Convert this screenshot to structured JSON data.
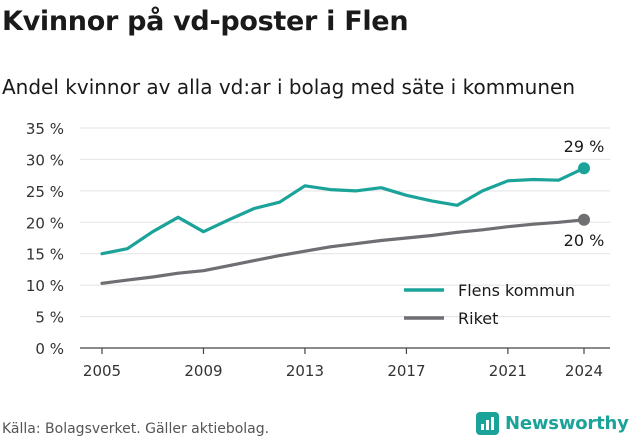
{
  "title": "Kvinnor på vd-poster i Flen",
  "subtitle": "Andel kvinnor av alla vd:ar i bolag med säte i kommunen",
  "source": "Källa: Bolagsverket. Gäller aktiebolag.",
  "brand": "Newsworthy",
  "colors": {
    "accent": "#1ba39a",
    "secondary": "#6e6e73"
  },
  "chart_data": {
    "type": "line",
    "x": [
      2005,
      2006,
      2007,
      2008,
      2009,
      2010,
      2011,
      2012,
      2013,
      2014,
      2015,
      2016,
      2017,
      2018,
      2019,
      2020,
      2021,
      2022,
      2023,
      2024
    ],
    "series": [
      {
        "name": "Flens kommun",
        "color": "#1ba39a",
        "values": [
          15.0,
          15.8,
          18.5,
          20.8,
          18.5,
          20.4,
          22.2,
          23.2,
          25.8,
          25.2,
          25.0,
          25.5,
          24.3,
          23.4,
          22.7,
          25.0,
          26.6,
          26.8,
          26.7,
          28.6
        ],
        "end_label": "29 %"
      },
      {
        "name": "Riket",
        "color": "#6e6e73",
        "values": [
          10.3,
          10.8,
          11.3,
          11.9,
          12.3,
          13.1,
          13.9,
          14.7,
          15.4,
          16.1,
          16.6,
          17.1,
          17.5,
          17.9,
          18.4,
          18.8,
          19.3,
          19.7,
          20.0,
          20.4
        ],
        "end_label": "20 %"
      }
    ],
    "y_ticks": [
      "0 %",
      "5 %",
      "10 %",
      "15 %",
      "20 %",
      "25 %",
      "30 %",
      "35 %"
    ],
    "x_ticks": [
      "2005",
      "2009",
      "2013",
      "2017",
      "2021",
      "2024"
    ],
    "ylim": [
      0,
      35
    ],
    "grid": true,
    "legend": "bottom-right"
  }
}
